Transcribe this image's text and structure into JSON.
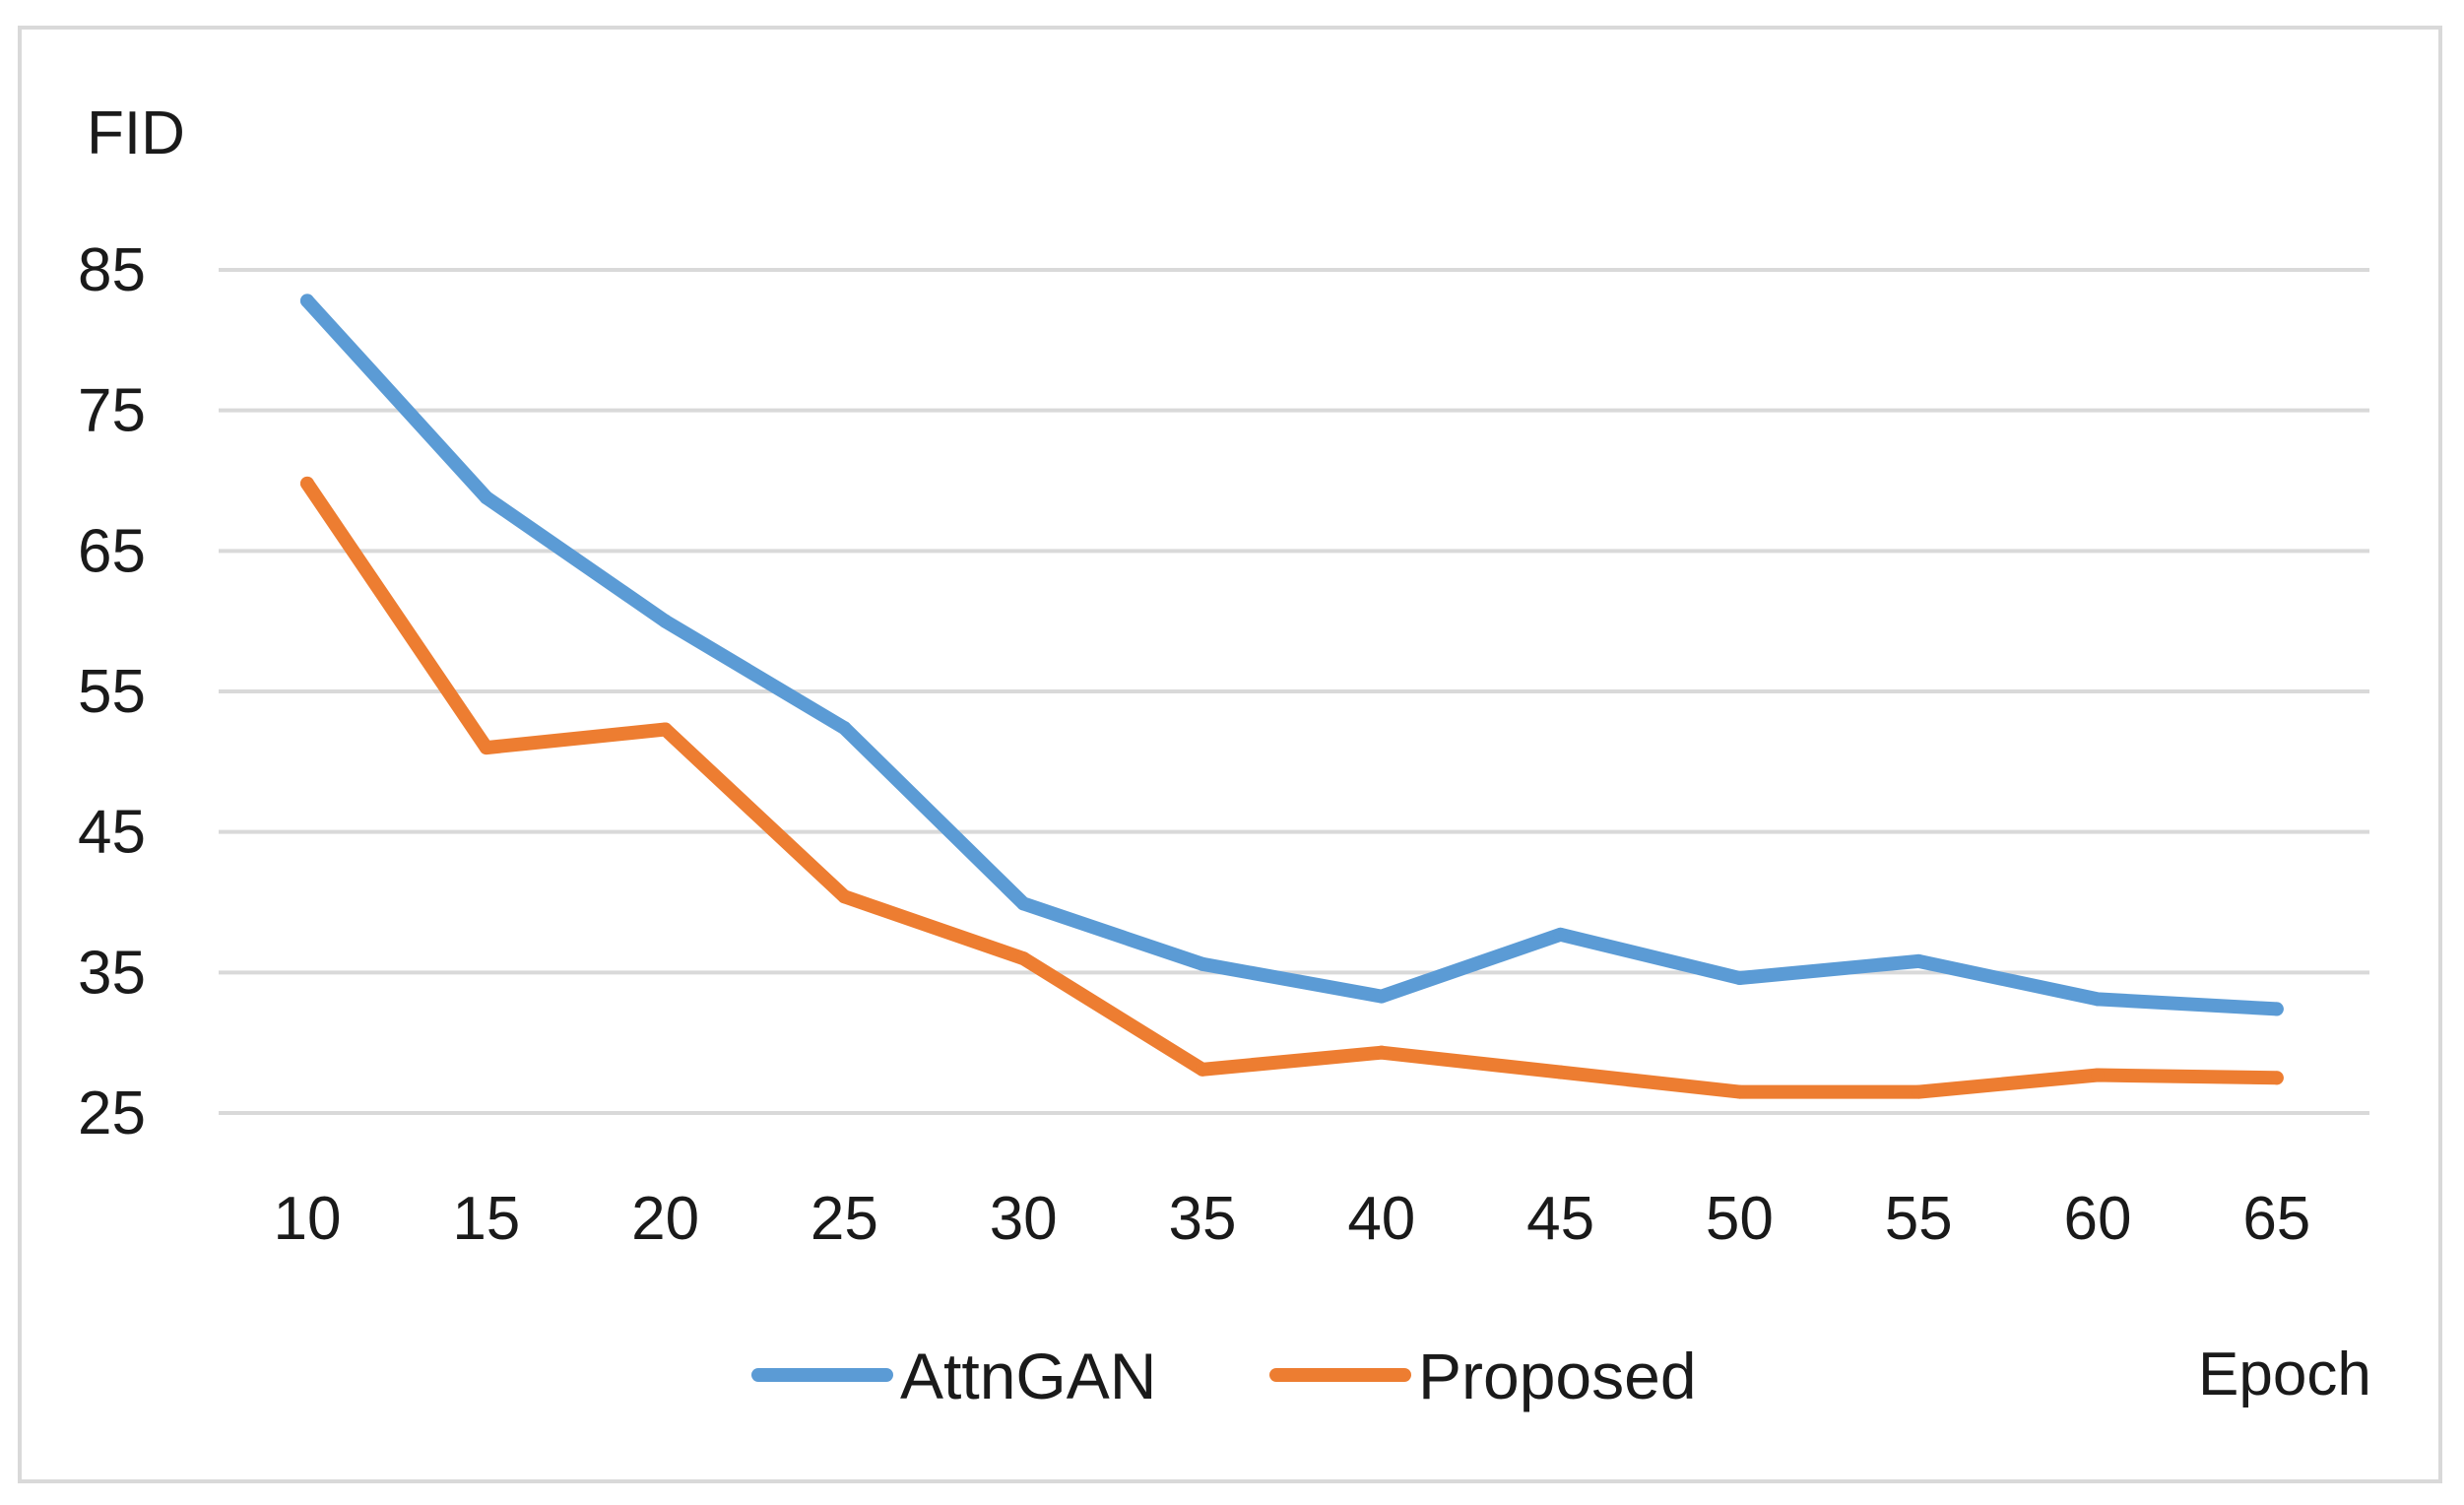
{
  "chart_data": {
    "type": "line",
    "ylabel": "FID",
    "xlabel": "Epoch",
    "x": [
      10,
      15,
      20,
      25,
      30,
      35,
      40,
      45,
      50,
      55,
      60,
      65
    ],
    "y_ticks": [
      25,
      35,
      45,
      55,
      65,
      75,
      85
    ],
    "ylim": [
      25,
      85
    ],
    "grid": true,
    "legend_position": "bottom",
    "series": [
      {
        "name": "AttnGAN",
        "color": "#5b9bd5",
        "values": [
          82.8,
          68.8,
          60.0,
          52.4,
          39.9,
          35.6,
          33.3,
          37.7,
          34.6,
          35.8,
          33.1,
          32.4
        ]
      },
      {
        "name": "Proposed",
        "color": "#ed7d31",
        "values": [
          69.8,
          51.0,
          52.3,
          40.4,
          36.0,
          28.1,
          29.3,
          27.9,
          26.5,
          26.5,
          27.7,
          27.5
        ]
      }
    ]
  }
}
